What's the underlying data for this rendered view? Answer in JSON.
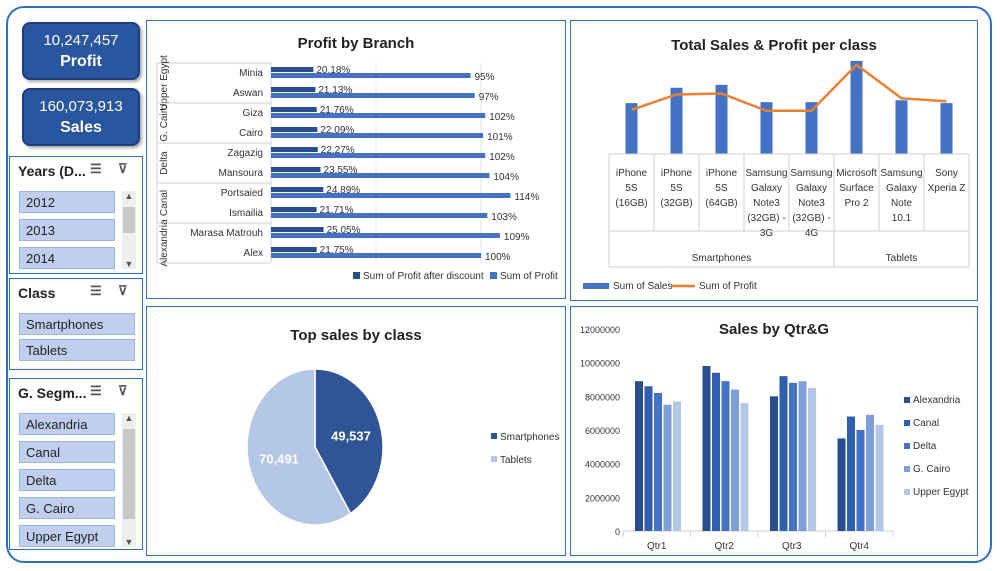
{
  "kpis": {
    "profit_value": "10,247,457",
    "profit_label": "Profit",
    "sales_value": "160,073,913",
    "sales_label": "Sales"
  },
  "slicers": {
    "years": {
      "title": "Years (D...",
      "items": [
        "2012",
        "2013",
        "2014"
      ]
    },
    "class": {
      "title": "Class",
      "items": [
        "Smartphones",
        "Tablets"
      ]
    },
    "segment": {
      "title": "G. Segm...",
      "items": [
        "Alexandria",
        "Canal",
        "Delta",
        "G. Cairo",
        "Upper Egypt"
      ]
    }
  },
  "colors": {
    "dark": "#2a4d8f",
    "mid": "#4472c4",
    "line": "#ed7d31",
    "slicer": "#c0cfee",
    "light": "#b4c7e7"
  },
  "chart_data": [
    {
      "id": "profit_by_branch",
      "type": "bar",
      "orientation": "horizontal",
      "title": "Profit by Branch",
      "groups": [
        {
          "name": "Upper Egypt",
          "branches": [
            "Minia",
            "Aswan"
          ]
        },
        {
          "name": "G. Cairo",
          "branches": [
            "Giza",
            "Cairo"
          ]
        },
        {
          "name": "Delta",
          "branches": [
            "Zagazig",
            "Mansoura"
          ]
        },
        {
          "name": "Canal",
          "branches": [
            "Portsaied",
            "Ismailia"
          ]
        },
        {
          "name": "Alexandria",
          "branches": [
            "Marasa Matrouh",
            "Alex"
          ]
        }
      ],
      "categories": [
        "Minia",
        "Aswan",
        "Giza",
        "Cairo",
        "Zagazig",
        "Mansoura",
        "Portsaied",
        "Ismailia",
        "Marasa Matrouh",
        "Alex"
      ],
      "series": [
        {
          "name": "Sum of Profit after discount",
          "values": [
            20.18,
            21.13,
            21.76,
            22.09,
            22.27,
            23.55,
            24.89,
            21.71,
            25.05,
            21.75
          ],
          "labels": [
            "20.18%",
            "21.13%",
            "21.76%",
            "22.09%",
            "22.27%",
            "23.55%",
            "24.89%",
            "21.71%",
            "25.05%",
            "21.75%"
          ]
        },
        {
          "name": "Sum of Profit",
          "values": [
            95,
            97,
            102,
            101,
            102,
            104,
            114,
            103,
            109,
            100
          ],
          "labels": [
            "95%",
            "97%",
            "102%",
            "101%",
            "102%",
            "104%",
            "114%",
            "103%",
            "109%",
            "100%"
          ]
        }
      ],
      "legend": "bottom-right"
    },
    {
      "id": "sales_profit_class",
      "type": "bar+line",
      "title": "Total Sales & Profit per class",
      "categories": [
        "iPhone 5S (16GB)",
        "iPhone 5S (32GB)",
        "iPhone 5S (64GB)",
        "Samsung Galaxy Note3 (32GB) - 3G",
        "Samsung Galaxy Note3 (32GB) - 4G",
        "Microsoft Surface Pro 2",
        "Samsung Galaxy Note 10.1",
        "Sony Xperia Z"
      ],
      "category_lines": [
        [
          "iPhone",
          "5S",
          "(16GB)"
        ],
        [
          "iPhone",
          "5S",
          "(32GB)"
        ],
        [
          "iPhone",
          "5S",
          "(64GB)"
        ],
        [
          "Samsung",
          "Galaxy",
          "Note3",
          "(32GB) -",
          "3G"
        ],
        [
          "Samsung",
          "Galaxy",
          "Note3",
          "(32GB) -",
          "4G"
        ],
        [
          "Microsoft",
          "Surface",
          "Pro 2"
        ],
        [
          "Samsung",
          "Galaxy",
          "Note",
          "10.1"
        ],
        [
          "Sony",
          "Xperia Z"
        ]
      ],
      "groups": [
        {
          "name": "Smartphones",
          "count": 5
        },
        {
          "name": "Tablets",
          "count": 3
        }
      ],
      "series": [
        {
          "name": "Sum of Sales",
          "type": "bar",
          "values": [
            53,
            69,
            72,
            54,
            54,
            97,
            56,
            53
          ]
        },
        {
          "name": "Sum of Profit",
          "type": "line",
          "values": [
            46,
            62,
            63,
            45,
            45,
            93,
            58,
            55
          ]
        }
      ],
      "legend": "bottom-left"
    },
    {
      "id": "top_sales_class",
      "type": "pie",
      "title": "Top sales by class",
      "slices": [
        {
          "name": "Smartphones",
          "value": 49537,
          "label": "49,537",
          "color": "#2f5597"
        },
        {
          "name": "Tablets",
          "value": 70491,
          "label": "70,491",
          "color": "#b4c7e7"
        }
      ],
      "legend": "right"
    },
    {
      "id": "sales_qtr_g",
      "type": "bar",
      "title": "Sales by Qtr&G",
      "categories": [
        "Qtr1",
        "Qtr2",
        "Qtr3",
        "Qtr4"
      ],
      "yticks": [
        "0",
        "2000000",
        "4000000",
        "6000000",
        "8000000",
        "10000000",
        "12000000"
      ],
      "ylim": [
        0,
        12000000
      ],
      "series": [
        {
          "name": "Alexandria",
          "values": [
            8900000,
            9800000,
            8000000,
            5500000
          ],
          "color": "#2a4d8f"
        },
        {
          "name": "Canal",
          "values": [
            8600000,
            9400000,
            9200000,
            6800000
          ],
          "color": "#2f5fb0"
        },
        {
          "name": "Delta",
          "values": [
            8200000,
            8900000,
            8800000,
            6000000
          ],
          "color": "#4472c4"
        },
        {
          "name": "G. Cairo",
          "values": [
            7500000,
            8400000,
            8900000,
            6900000
          ],
          "color": "#7f9fd9"
        },
        {
          "name": "Upper Egypt",
          "values": [
            7700000,
            7600000,
            8500000,
            6300000
          ],
          "color": "#b4c7e7"
        }
      ],
      "legend": "right"
    }
  ]
}
